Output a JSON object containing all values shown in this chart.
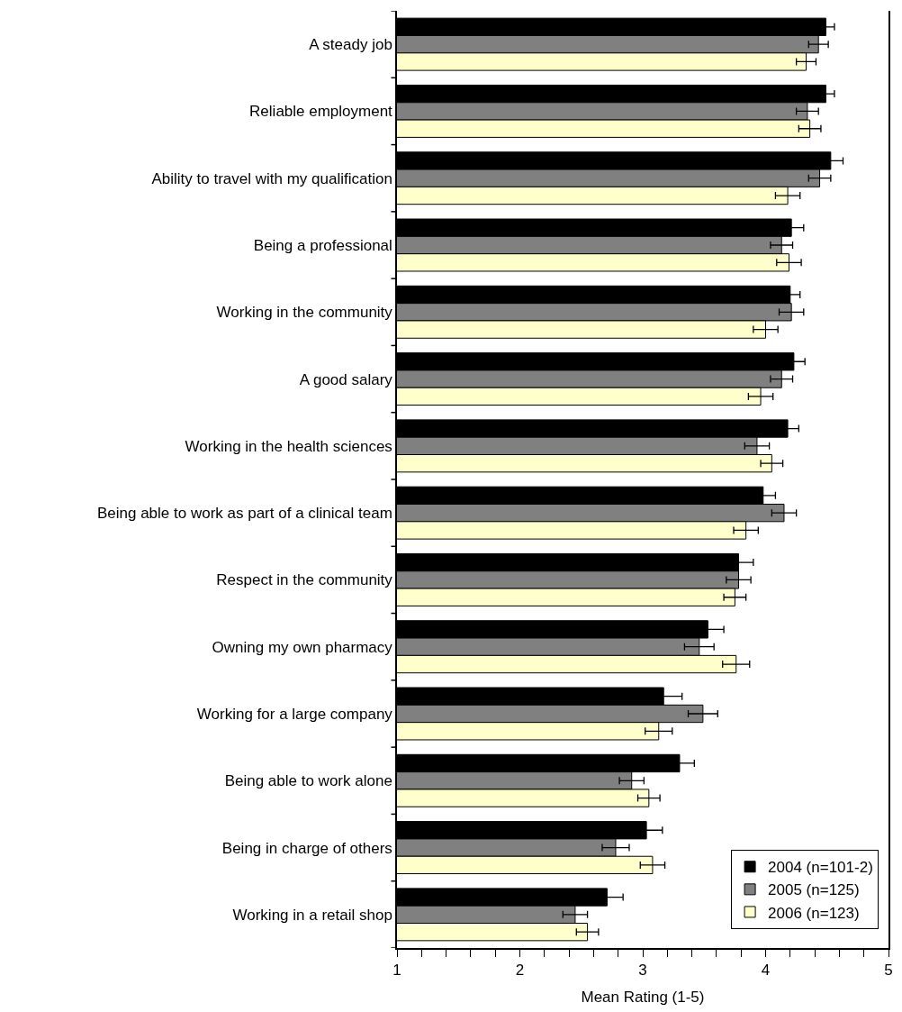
{
  "chart_data": {
    "type": "bar",
    "orientation": "horizontal",
    "xlabel": "Mean Rating (1-5)",
    "categories": [
      "A steady job",
      "Reliable employment",
      "Ability to travel with my qualification",
      "Being a professional",
      "Working in the community",
      "A good salary",
      "Working in the health sciences",
      "Being able to work as part of a clinical team",
      "Respect in the community",
      "Owning my own pharmacy",
      "Working for a large company",
      "Being able to work alone",
      "Being in charge of others",
      "Working in a retail shop"
    ],
    "series": [
      {
        "name": "2004 (n=101-2)",
        "color": "#000000",
        "values": [
          4.49,
          4.49,
          4.53,
          4.21,
          4.2,
          4.23,
          4.18,
          3.98,
          3.78,
          3.53,
          3.17,
          3.3,
          3.03,
          2.71
        ],
        "errors": [
          0.07,
          0.07,
          0.1,
          0.1,
          0.08,
          0.09,
          0.09,
          0.1,
          0.12,
          0.13,
          0.15,
          0.12,
          0.13,
          0.13
        ]
      },
      {
        "name": "2005 (n=125)",
        "color": "#808080",
        "values": [
          4.43,
          4.34,
          4.44,
          4.13,
          4.21,
          4.13,
          3.93,
          4.15,
          3.78,
          3.46,
          3.49,
          2.91,
          2.78,
          2.45
        ],
        "errors": [
          0.08,
          0.09,
          0.09,
          0.09,
          0.1,
          0.09,
          0.1,
          0.1,
          0.1,
          0.12,
          0.12,
          0.1,
          0.11,
          0.1
        ]
      },
      {
        "name": "2006 (n=123)",
        "color": "#ffffcc",
        "values": [
          4.33,
          4.36,
          4.18,
          4.19,
          4.0,
          3.96,
          4.05,
          3.84,
          3.75,
          3.76,
          3.13,
          3.05,
          3.08,
          2.55
        ],
        "errors": [
          0.08,
          0.09,
          0.1,
          0.1,
          0.1,
          0.1,
          0.09,
          0.1,
          0.09,
          0.11,
          0.11,
          0.09,
          0.1,
          0.09
        ]
      }
    ],
    "xlim": [
      1,
      5
    ],
    "xticks": [
      1,
      {
        "value": 1.2,
        "label": null
      },
      {
        "value": 1.4,
        "label": null
      },
      {
        "value": 1.6,
        "label": null
      },
      {
        "value": 1.8,
        "label": null
      },
      2,
      {
        "value": 2.2,
        "label": null
      },
      {
        "value": 2.4,
        "label": null
      },
      {
        "value": 2.6,
        "label": null
      },
      {
        "value": 2.8,
        "label": null
      },
      3,
      {
        "value": 3.2,
        "label": null
      },
      {
        "value": 3.4,
        "label": null
      },
      {
        "value": 3.6,
        "label": null
      },
      {
        "value": 3.8,
        "label": null
      },
      4,
      {
        "value": 4.2,
        "label": null
      },
      {
        "value": 4.4,
        "label": null
      },
      {
        "value": 4.6,
        "label": null
      },
      {
        "value": 4.8,
        "label": null
      },
      5
    ],
    "legend": "bottom right"
  }
}
